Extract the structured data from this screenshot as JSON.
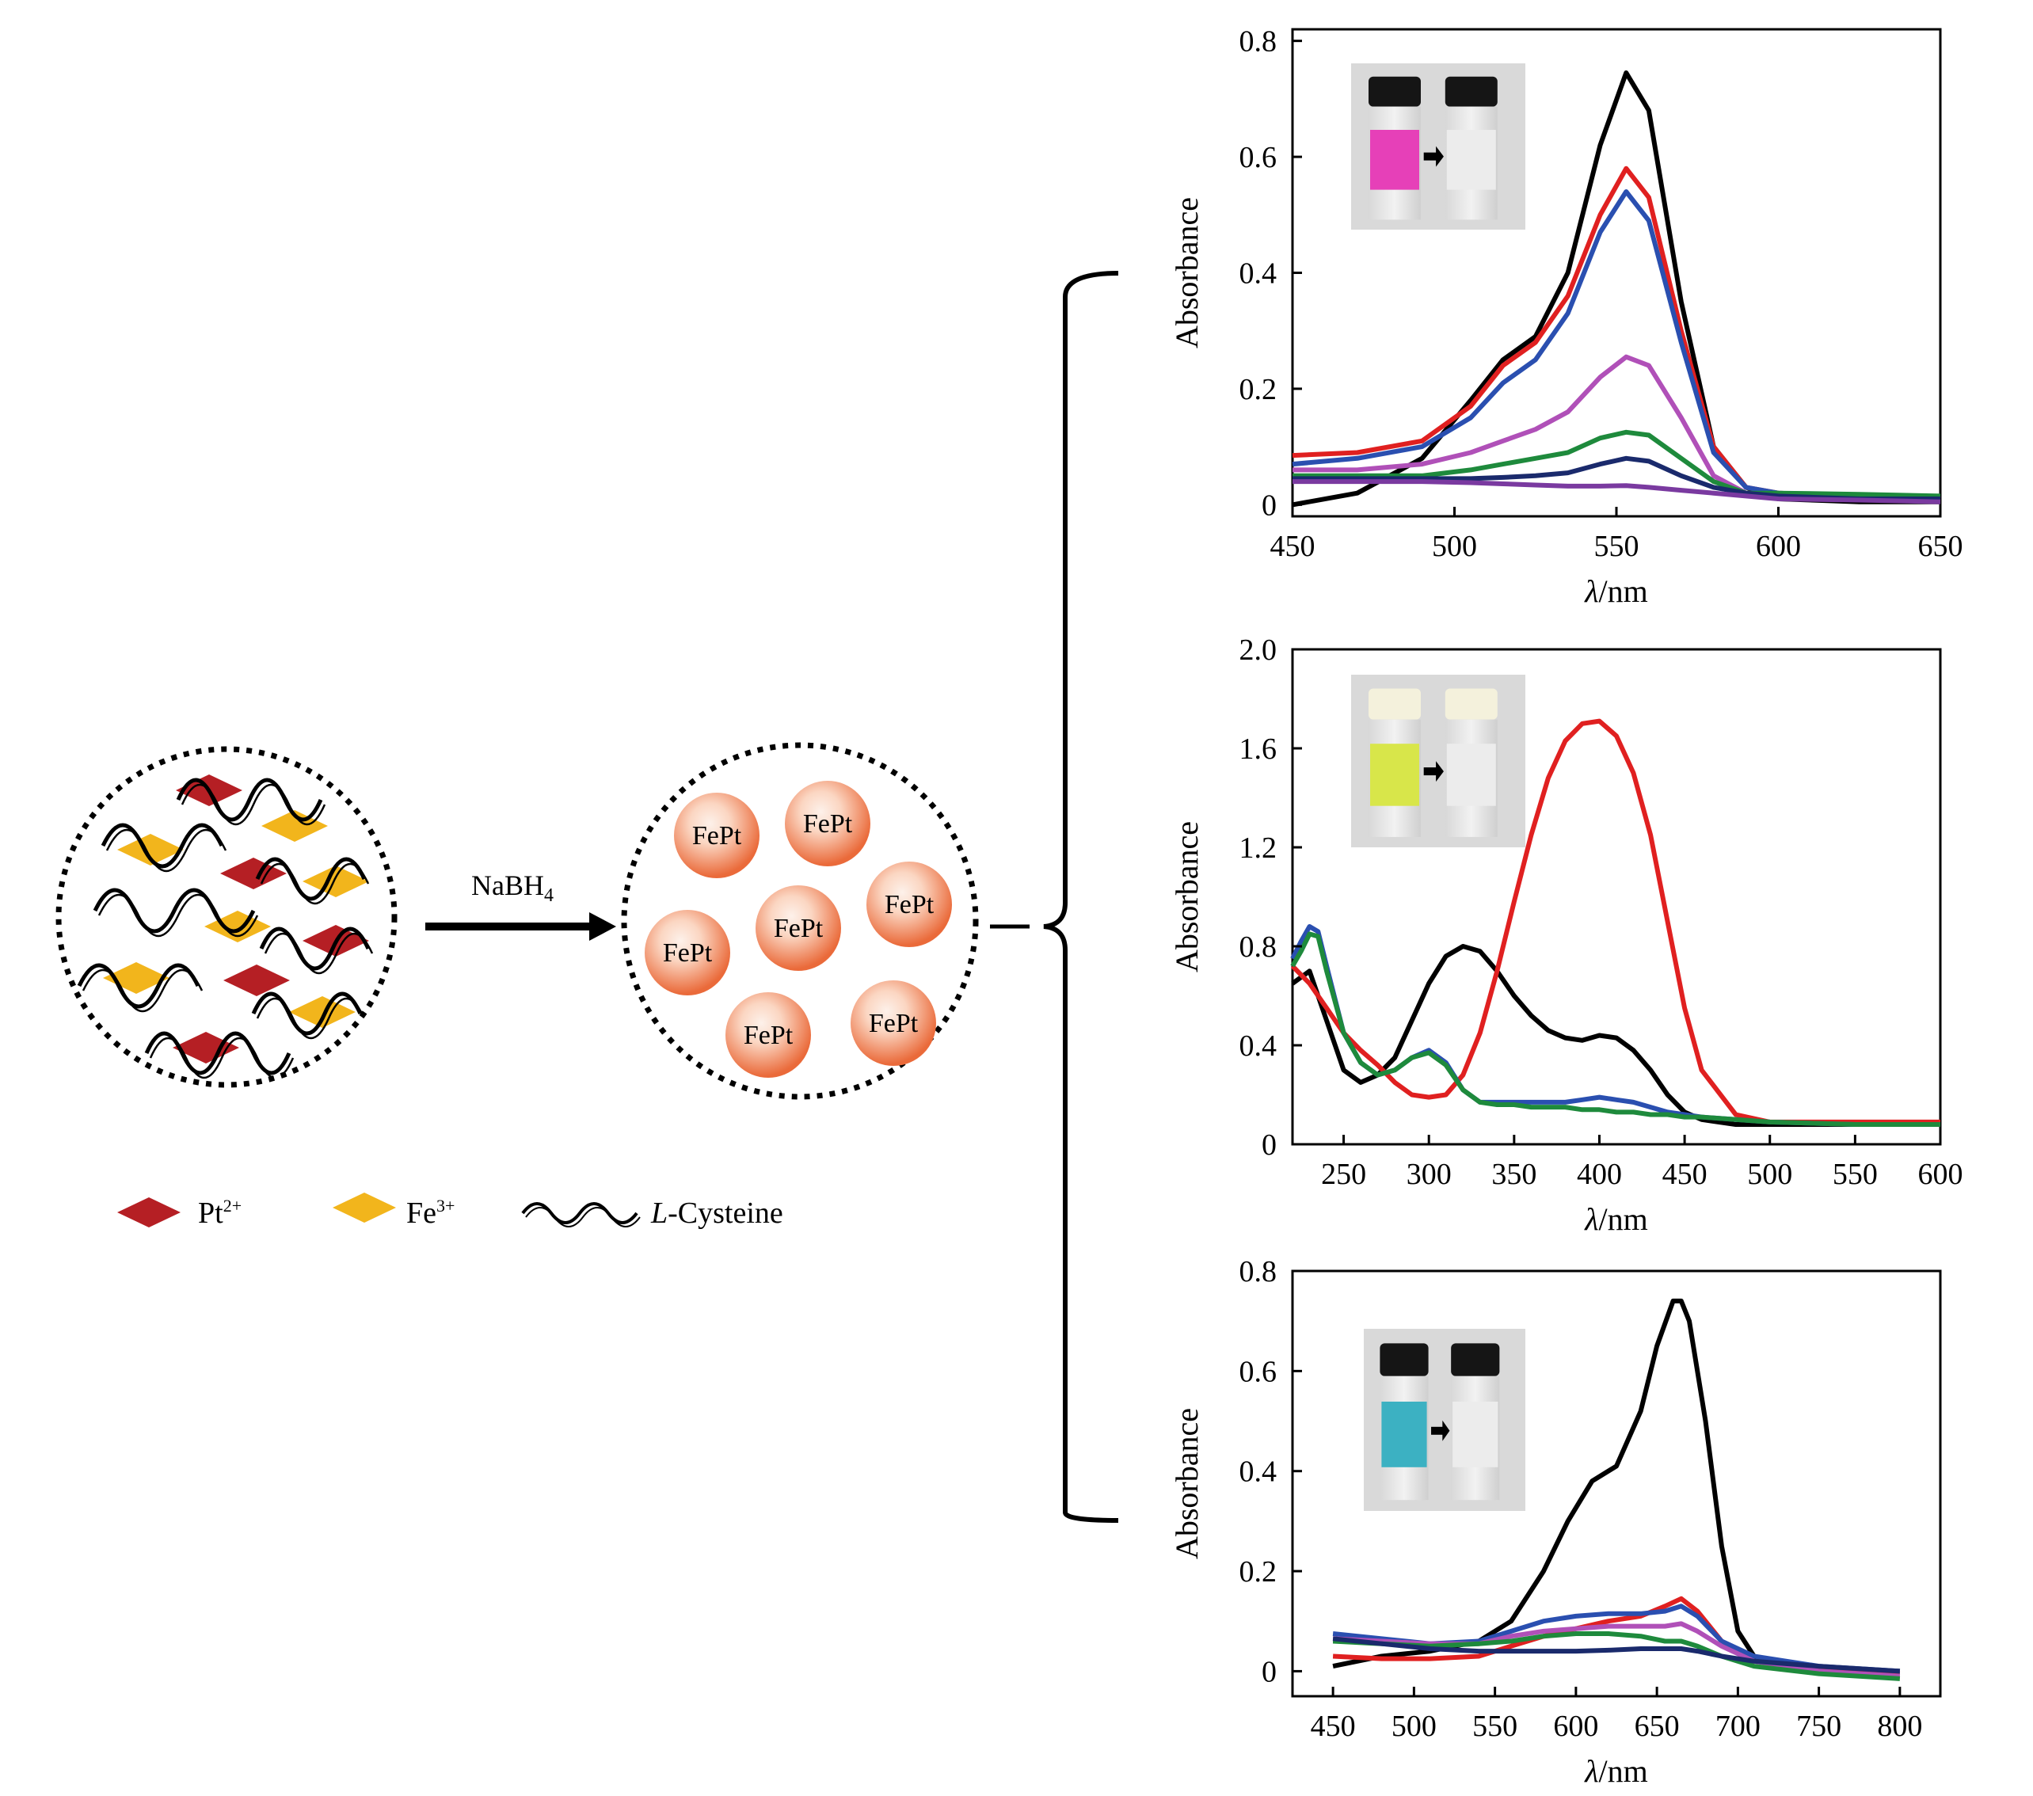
{
  "scheme": {
    "reagent": "NaBH",
    "reagent_sub": "4",
    "particle_label": "FePt",
    "legend": [
      {
        "ion": "Pt",
        "charge": "2+",
        "color": "#b51f24"
      },
      {
        "ion": "Fe",
        "charge": "3+",
        "color": "#f2b51c"
      },
      {
        "ion_italic": "L",
        "ion_rest": "-Cysteine"
      }
    ]
  },
  "colors": {
    "particle_outer": "#ea6a3a",
    "particle_inner": "#fdf1ea",
    "vial_pink": "#e640b8",
    "vial_yellow": "#d8e64a",
    "vial_cyan": "#3cb1c2"
  },
  "chart_data": [
    {
      "type": "line",
      "xlabel_italic": "λ",
      "xlabel_rest": "/nm",
      "ylabel": "Absorbance",
      "xlim": [
        450,
        650
      ],
      "ylim": [
        -0.02,
        0.82
      ],
      "xticks": [
        450,
        500,
        550,
        600,
        650
      ],
      "xtick_labels": [
        "450",
        "500",
        "550",
        "600",
        "650"
      ],
      "yticks": [
        0,
        0.2,
        0.4,
        0.6,
        0.8
      ],
      "ytick_labels": [
        "0",
        "0.2",
        "0.4",
        "0.6",
        "0.8"
      ],
      "inset": {
        "left_color": "pink",
        "right_color": "clear",
        "arrow": true
      },
      "series": [
        {
          "name": "black",
          "color": "#000000",
          "x": [
            450,
            470,
            490,
            505,
            515,
            525,
            535,
            545,
            553,
            560,
            570,
            580,
            590,
            600,
            625,
            650
          ],
          "y": [
            0.0,
            0.02,
            0.08,
            0.18,
            0.25,
            0.29,
            0.4,
            0.62,
            0.745,
            0.68,
            0.35,
            0.1,
            0.03,
            0.01,
            0.005,
            0.005
          ]
        },
        {
          "name": "red",
          "color": "#e02020",
          "x": [
            450,
            470,
            490,
            505,
            515,
            525,
            535,
            545,
            553,
            560,
            570,
            580,
            590,
            600,
            625,
            650
          ],
          "y": [
            0.085,
            0.09,
            0.11,
            0.17,
            0.24,
            0.28,
            0.36,
            0.5,
            0.58,
            0.53,
            0.3,
            0.1,
            0.03,
            0.02,
            0.015,
            0.01
          ]
        },
        {
          "name": "blue",
          "color": "#2a4fb0",
          "x": [
            450,
            470,
            490,
            505,
            515,
            525,
            535,
            545,
            553,
            560,
            570,
            580,
            590,
            600,
            625,
            650
          ],
          "y": [
            0.07,
            0.08,
            0.1,
            0.15,
            0.21,
            0.25,
            0.33,
            0.47,
            0.54,
            0.49,
            0.28,
            0.09,
            0.03,
            0.02,
            0.015,
            0.01
          ]
        },
        {
          "name": "magenta",
          "color": "#b050b8",
          "x": [
            450,
            470,
            490,
            505,
            515,
            525,
            535,
            545,
            553,
            560,
            570,
            580,
            590,
            600,
            625,
            650
          ],
          "y": [
            0.06,
            0.06,
            0.07,
            0.09,
            0.11,
            0.13,
            0.16,
            0.22,
            0.255,
            0.24,
            0.15,
            0.05,
            0.02,
            0.015,
            0.01,
            0.01
          ]
        },
        {
          "name": "green",
          "color": "#1e8a3c",
          "x": [
            450,
            470,
            490,
            505,
            515,
            525,
            535,
            545,
            553,
            560,
            570,
            580,
            590,
            600,
            625,
            650
          ],
          "y": [
            0.05,
            0.05,
            0.05,
            0.06,
            0.07,
            0.08,
            0.09,
            0.115,
            0.125,
            0.12,
            0.08,
            0.04,
            0.02,
            0.02,
            0.018,
            0.015
          ]
        },
        {
          "name": "navy",
          "color": "#1a2a6c",
          "x": [
            450,
            470,
            490,
            505,
            515,
            525,
            535,
            545,
            553,
            560,
            570,
            580,
            590,
            600,
            625,
            650
          ],
          "y": [
            0.045,
            0.045,
            0.045,
            0.045,
            0.047,
            0.05,
            0.055,
            0.07,
            0.08,
            0.075,
            0.05,
            0.03,
            0.02,
            0.015,
            0.01,
            0.01
          ]
        },
        {
          "name": "purple",
          "color": "#7a3aa0",
          "x": [
            450,
            470,
            490,
            505,
            515,
            525,
            535,
            545,
            553,
            560,
            570,
            580,
            590,
            600,
            625,
            650
          ],
          "y": [
            0.04,
            0.04,
            0.04,
            0.038,
            0.036,
            0.034,
            0.032,
            0.032,
            0.033,
            0.03,
            0.025,
            0.02,
            0.015,
            0.01,
            0.008,
            0.005
          ]
        }
      ]
    },
    {
      "type": "line",
      "xlabel_italic": "λ",
      "xlabel_rest": "/nm",
      "ylabel": "Absorbance",
      "xlim": [
        220,
        600
      ],
      "ylim": [
        0,
        2.0
      ],
      "xticks": [
        250,
        300,
        350,
        400,
        450,
        500,
        550,
        600
      ],
      "xtick_labels": [
        "250",
        "300",
        "350",
        "400",
        "450",
        "500",
        "550",
        "600"
      ],
      "yticks": [
        0,
        0.4,
        0.8,
        1.2,
        1.6,
        2.0
      ],
      "ytick_labels": [
        "0",
        "0.4",
        "0.8",
        "1.2",
        "1.6",
        "2.0"
      ],
      "inset": {
        "left_color": "yellow",
        "right_color": "clear",
        "arrow": true
      },
      "series": [
        {
          "name": "black",
          "color": "#000000",
          "x": [
            220,
            230,
            240,
            250,
            260,
            270,
            280,
            290,
            300,
            310,
            320,
            330,
            340,
            350,
            360,
            370,
            380,
            390,
            400,
            410,
            420,
            430,
            440,
            450,
            460,
            480,
            500,
            550,
            600
          ],
          "y": [
            0.65,
            0.7,
            0.5,
            0.3,
            0.25,
            0.28,
            0.35,
            0.5,
            0.65,
            0.76,
            0.8,
            0.78,
            0.7,
            0.6,
            0.52,
            0.46,
            0.43,
            0.42,
            0.44,
            0.43,
            0.38,
            0.3,
            0.2,
            0.13,
            0.1,
            0.08,
            0.08,
            0.08,
            0.08
          ]
        },
        {
          "name": "red",
          "color": "#e02020",
          "x": [
            220,
            230,
            240,
            250,
            260,
            270,
            280,
            290,
            300,
            310,
            320,
            330,
            340,
            350,
            360,
            370,
            380,
            390,
            400,
            410,
            420,
            430,
            440,
            450,
            460,
            480,
            500,
            550,
            600
          ],
          "y": [
            0.72,
            0.65,
            0.55,
            0.45,
            0.38,
            0.32,
            0.25,
            0.2,
            0.19,
            0.2,
            0.28,
            0.45,
            0.7,
            0.98,
            1.25,
            1.48,
            1.63,
            1.7,
            1.71,
            1.65,
            1.5,
            1.25,
            0.9,
            0.55,
            0.3,
            0.12,
            0.09,
            0.09,
            0.09
          ]
        },
        {
          "name": "blue",
          "color": "#2a4fb0",
          "x": [
            220,
            225,
            230,
            235,
            240,
            250,
            260,
            270,
            280,
            290,
            300,
            310,
            320,
            330,
            340,
            350,
            360,
            370,
            380,
            390,
            400,
            410,
            420,
            430,
            440,
            450,
            460,
            480,
            500,
            550,
            600
          ],
          "y": [
            0.75,
            0.82,
            0.88,
            0.86,
            0.72,
            0.45,
            0.33,
            0.28,
            0.3,
            0.35,
            0.38,
            0.33,
            0.22,
            0.17,
            0.17,
            0.17,
            0.17,
            0.17,
            0.17,
            0.18,
            0.19,
            0.18,
            0.17,
            0.15,
            0.13,
            0.12,
            0.11,
            0.1,
            0.09,
            0.08,
            0.08
          ]
        },
        {
          "name": "green",
          "color": "#1e8a3c",
          "x": [
            220,
            225,
            230,
            235,
            240,
            250,
            260,
            270,
            280,
            290,
            300,
            310,
            320,
            330,
            340,
            350,
            360,
            370,
            380,
            390,
            400,
            410,
            420,
            430,
            440,
            450,
            460,
            480,
            500,
            550,
            600
          ],
          "y": [
            0.72,
            0.78,
            0.85,
            0.84,
            0.7,
            0.45,
            0.33,
            0.28,
            0.3,
            0.35,
            0.37,
            0.32,
            0.22,
            0.17,
            0.16,
            0.16,
            0.15,
            0.15,
            0.15,
            0.14,
            0.14,
            0.13,
            0.13,
            0.12,
            0.12,
            0.11,
            0.11,
            0.1,
            0.09,
            0.08,
            0.08
          ]
        }
      ]
    },
    {
      "type": "line",
      "xlabel_italic": "λ",
      "xlabel_rest": "/nm",
      "ylabel": "Absorbance",
      "xlim": [
        425,
        825
      ],
      "ylim": [
        -0.05,
        0.8
      ],
      "xticks": [
        450,
        500,
        550,
        600,
        650,
        700,
        750,
        800
      ],
      "xtick_labels": [
        "450",
        "500",
        "550",
        "600",
        "650",
        "700",
        "750",
        "800"
      ],
      "yticks": [
        0,
        0.2,
        0.4,
        0.6,
        0.8
      ],
      "ytick_labels": [
        "0",
        "0.2",
        "0.4",
        "0.6",
        "0.8"
      ],
      "inset": {
        "left_color": "cyan",
        "right_color": "clear",
        "arrow": true
      },
      "series": [
        {
          "name": "black",
          "color": "#000000",
          "x": [
            450,
            480,
            510,
            540,
            560,
            580,
            595,
            610,
            625,
            640,
            650,
            660,
            665,
            670,
            680,
            690,
            700,
            710,
            730,
            760,
            800
          ],
          "y": [
            0.01,
            0.03,
            0.04,
            0.06,
            0.1,
            0.2,
            0.3,
            0.38,
            0.41,
            0.52,
            0.65,
            0.74,
            0.74,
            0.7,
            0.5,
            0.25,
            0.08,
            0.03,
            0.01,
            0.0,
            0.0
          ]
        },
        {
          "name": "red",
          "color": "#e02020",
          "x": [
            450,
            480,
            510,
            540,
            560,
            580,
            600,
            620,
            640,
            655,
            665,
            675,
            690,
            710,
            750,
            800
          ],
          "y": [
            0.03,
            0.025,
            0.025,
            0.03,
            0.05,
            0.07,
            0.085,
            0.1,
            0.11,
            0.13,
            0.145,
            0.12,
            0.06,
            0.02,
            0.005,
            -0.005
          ]
        },
        {
          "name": "blue",
          "color": "#2a4fb0",
          "x": [
            450,
            480,
            510,
            540,
            560,
            580,
            600,
            620,
            640,
            655,
            665,
            675,
            690,
            710,
            750,
            800
          ],
          "y": [
            0.075,
            0.065,
            0.055,
            0.06,
            0.08,
            0.1,
            0.11,
            0.115,
            0.115,
            0.12,
            0.13,
            0.11,
            0.06,
            0.03,
            0.01,
            0.0
          ]
        },
        {
          "name": "magenta",
          "color": "#b050b8",
          "x": [
            450,
            480,
            510,
            540,
            560,
            580,
            600,
            620,
            640,
            655,
            665,
            675,
            690,
            710,
            750,
            800
          ],
          "y": [
            0.065,
            0.06,
            0.055,
            0.055,
            0.07,
            0.08,
            0.085,
            0.09,
            0.09,
            0.09,
            0.095,
            0.08,
            0.05,
            0.02,
            0.0,
            -0.01
          ]
        },
        {
          "name": "green",
          "color": "#1e8a3c",
          "x": [
            450,
            480,
            510,
            540,
            560,
            580,
            600,
            620,
            640,
            655,
            665,
            675,
            690,
            710,
            750,
            800
          ],
          "y": [
            0.06,
            0.055,
            0.05,
            0.055,
            0.06,
            0.07,
            0.075,
            0.075,
            0.07,
            0.06,
            0.06,
            0.05,
            0.03,
            0.01,
            -0.005,
            -0.015
          ]
        },
        {
          "name": "navy",
          "color": "#1a2a6c",
          "x": [
            450,
            480,
            510,
            540,
            560,
            580,
            600,
            620,
            640,
            655,
            665,
            675,
            690,
            710,
            750,
            800
          ],
          "y": [
            0.065,
            0.055,
            0.045,
            0.04,
            0.04,
            0.04,
            0.04,
            0.042,
            0.045,
            0.045,
            0.045,
            0.04,
            0.03,
            0.02,
            0.01,
            0.0
          ]
        }
      ]
    }
  ]
}
